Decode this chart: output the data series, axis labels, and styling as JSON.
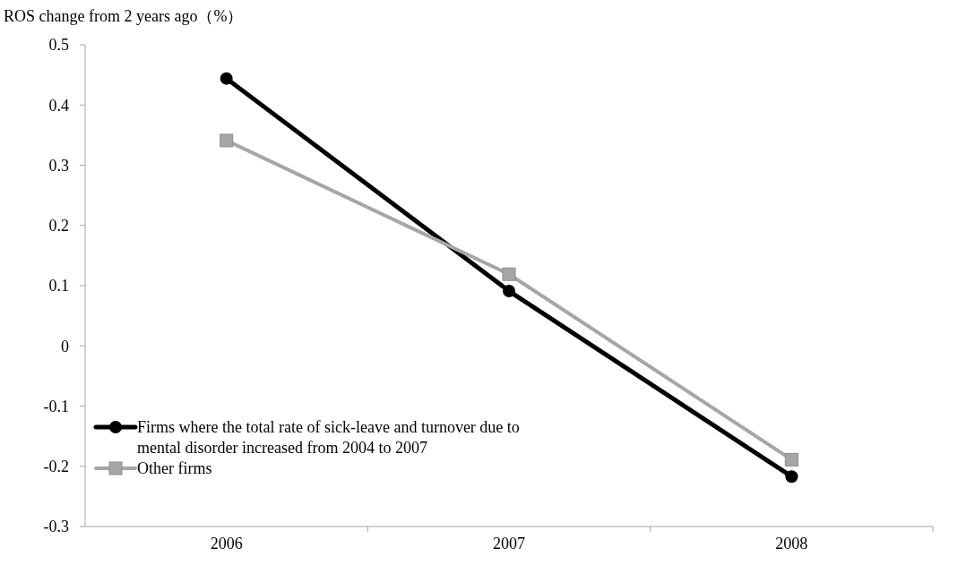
{
  "chart_data": {
    "type": "line",
    "ylabel": "ROS change from 2 years ago（%）",
    "categories": [
      "2006",
      "2007",
      "2008"
    ],
    "series": [
      {
        "name": "Firms where the total rate of sick-leave and turnover due to mental disorder increased from 2004 to 2007",
        "color": "#000000",
        "marker": "circle",
        "values": [
          0.444,
          0.091,
          -0.217
        ]
      },
      {
        "name": "Other firms",
        "color": "#a6a6a6",
        "marker": "square",
        "values": [
          0.341,
          0.119,
          -0.189
        ]
      }
    ],
    "ylim": [
      -0.3,
      0.5
    ],
    "yticks": [
      -0.3,
      -0.2,
      -0.1,
      0,
      0.1,
      0.2,
      0.3,
      0.4,
      0.5
    ],
    "grid": false,
    "legend": "bottom left",
    "line_style": "solid"
  }
}
